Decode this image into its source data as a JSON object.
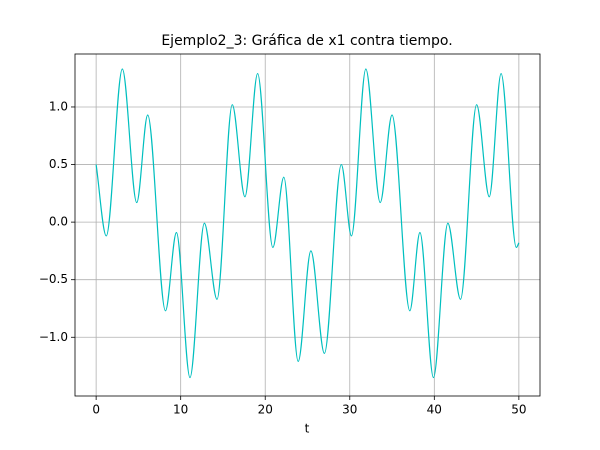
{
  "chart_data": {
    "type": "line",
    "title": "Ejemplo2_3: Gráfica de x1 contra tiempo.",
    "x_label": "t",
    "xlim": [
      -2.5,
      52.5
    ],
    "xticks": [
      0,
      10,
      20,
      30,
      40,
      50
    ],
    "ylim": [
      -1.51,
      1.46
    ],
    "yticks": [
      {
        "value": -1.0,
        "label": "−1.0"
      },
      {
        "value": -0.5,
        "label": "−0.5"
      },
      {
        "value": 0.0,
        "label": "0.0"
      },
      {
        "value": 0.5,
        "label": "0.5"
      },
      {
        "value": 1.0,
        "label": "1.0"
      }
    ],
    "grid": true,
    "series": [
      {
        "color": "#00bfbf",
        "x": [
          0,
          1.2,
          3.1,
          4.8,
          6.1,
          8.2,
          9.5,
          11.1,
          12.8,
          14.3,
          16.1,
          17.6,
          19.1,
          20.9,
          22.2,
          23.9,
          25.4,
          27.0,
          29.0,
          30.2,
          31.9,
          33.6,
          35.0,
          37.1,
          38.3,
          39.9,
          41.6,
          43.1,
          45.0,
          46.5,
          47.9,
          49.7,
          50
        ],
        "values": [
          0.5,
          -0.12,
          1.33,
          0.17,
          0.93,
          -0.77,
          -0.09,
          -1.35,
          -0.01,
          -0.67,
          1.02,
          0.22,
          1.29,
          -0.22,
          0.39,
          -1.21,
          -0.25,
          -1.14,
          0.5,
          -0.12,
          1.33,
          0.17,
          0.93,
          -0.77,
          -0.09,
          -1.35,
          -0.01,
          -0.67,
          1.02,
          0.22,
          1.29,
          -0.22,
          -0.18
        ]
      }
    ]
  }
}
